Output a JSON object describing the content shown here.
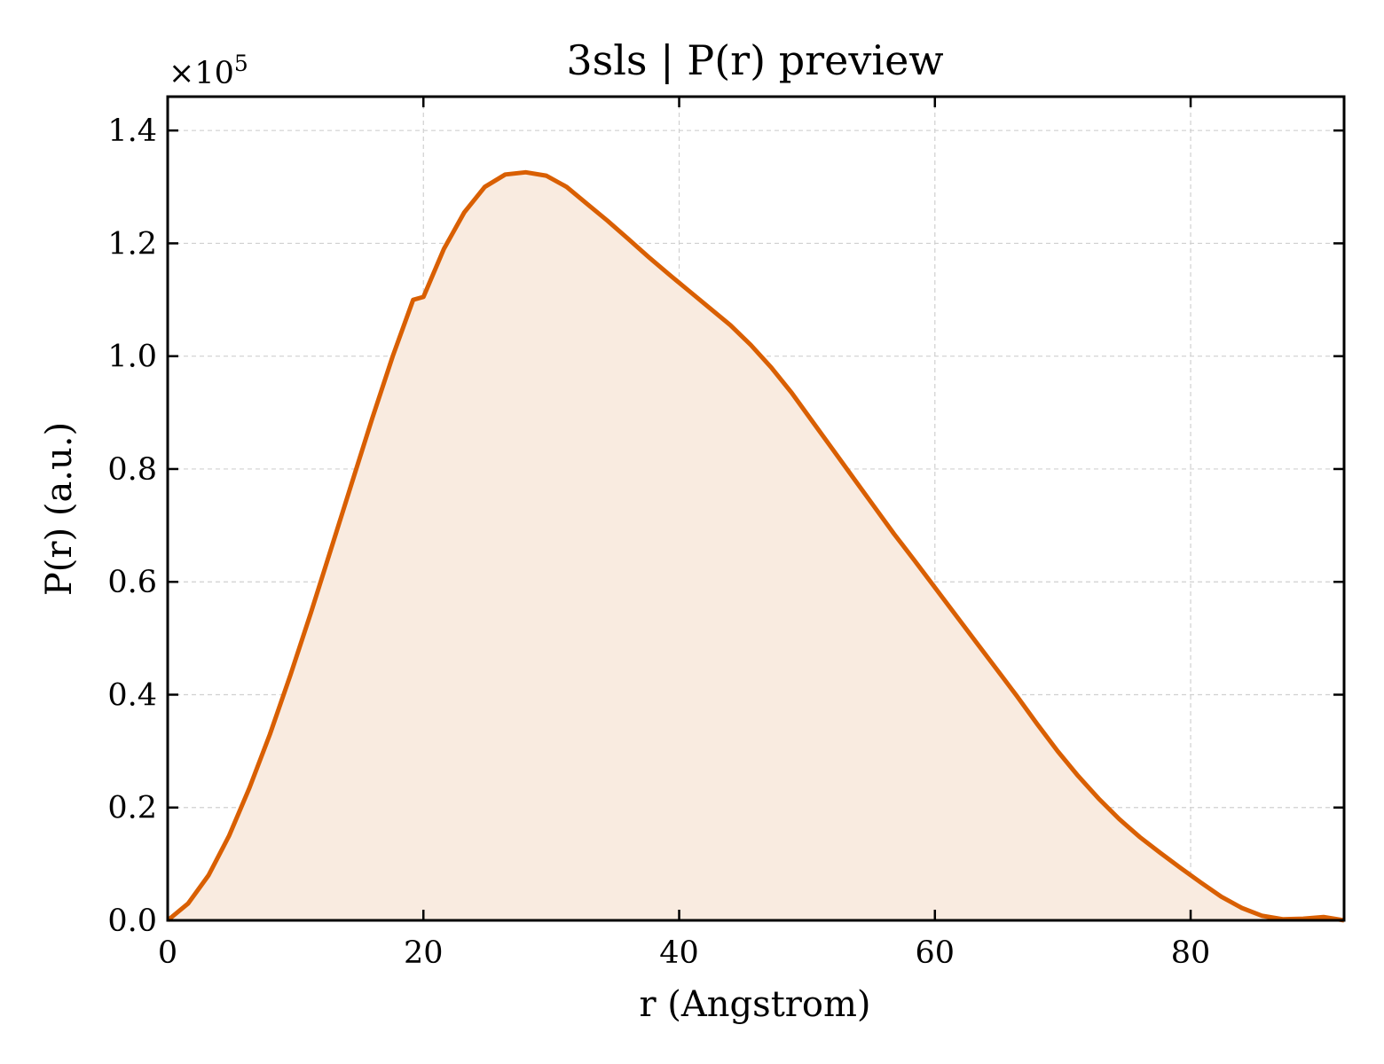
{
  "chart_data": {
    "type": "area",
    "title": "3sls | P(r) preview",
    "xlabel": "r (Angstrom)",
    "ylabel": "P(r) (a.u.)",
    "y_multiplier_text": "×10",
    "y_multiplier_exp": "5",
    "xlim": [
      0,
      92
    ],
    "ylim": [
      0,
      1.46
    ],
    "xticks": [
      0,
      20,
      40,
      60,
      80
    ],
    "yticks": [
      0.0,
      0.2,
      0.4,
      0.6,
      0.8,
      1.0,
      1.2,
      1.4
    ],
    "xtick_labels": [
      "0",
      "20",
      "40",
      "60",
      "80"
    ],
    "ytick_labels": [
      "0.0",
      "0.2",
      "0.4",
      "0.6",
      "0.8",
      "1.0",
      "1.2",
      "1.4"
    ],
    "grid": true,
    "series_color": "#d95f02",
    "fill_color": "#f9ebe0",
    "x": [
      0,
      1.6,
      3.2,
      4.8,
      6.4,
      8.0,
      9.6,
      11.2,
      12.8,
      14.4,
      16.0,
      17.6,
      19.2,
      20.0,
      21.6,
      23.2,
      24.8,
      26.4,
      28.0,
      29.6,
      31.2,
      32.8,
      34.4,
      36.0,
      37.6,
      39.2,
      40.8,
      42.4,
      44.0,
      45.6,
      47.2,
      48.8,
      50.4,
      52.0,
      53.6,
      55.2,
      56.8,
      58.4,
      60.0,
      61.6,
      63.2,
      64.8,
      66.4,
      68.0,
      69.6,
      71.2,
      72.8,
      74.4,
      76.0,
      77.6,
      79.2,
      80.8,
      82.4,
      84.0,
      85.6,
      87.2,
      88.8,
      90.4,
      92.0
    ],
    "y": [
      0.0,
      0.03,
      0.08,
      0.15,
      0.235,
      0.33,
      0.435,
      0.545,
      0.66,
      0.775,
      0.89,
      1.0,
      1.1,
      1.105,
      1.19,
      1.255,
      1.3,
      1.322,
      1.326,
      1.32,
      1.3,
      1.27,
      1.24,
      1.208,
      1.176,
      1.145,
      1.115,
      1.085,
      1.055,
      1.02,
      0.98,
      0.935,
      0.885,
      0.835,
      0.785,
      0.735,
      0.685,
      0.638,
      0.59,
      0.542,
      0.494,
      0.446,
      0.398,
      0.348,
      0.3,
      0.256,
      0.216,
      0.18,
      0.148,
      0.12,
      0.093,
      0.067,
      0.042,
      0.022,
      0.008,
      0.002,
      0.003,
      0.006,
      0.0
    ]
  }
}
